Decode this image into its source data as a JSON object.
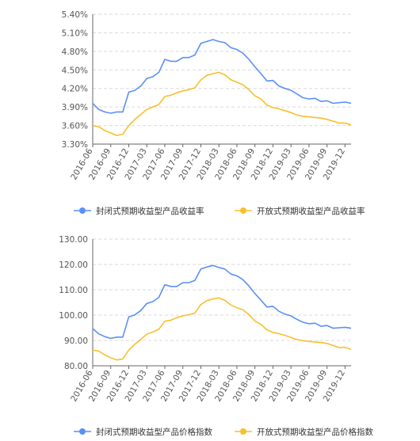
{
  "chart_data": [
    {
      "type": "line",
      "ylim": [
        3.3,
        5.4
      ],
      "yticks": [
        "5.40%",
        "5.10%",
        "4.80%",
        "4.50%",
        "4.20%",
        "3.90%",
        "3.60%",
        "3.30%"
      ],
      "x_tick_labels": [
        "2016-06",
        "2016-09",
        "2016-12",
        "2017-03",
        "2017-06",
        "2017-09",
        "2017-12",
        "2018-03",
        "2018-06",
        "2018-09",
        "2018-12",
        "2019-03",
        "2019-06",
        "2019-09",
        "2019-12"
      ],
      "legend": {
        "position": "bottom-center"
      },
      "grid": "horizontal dashed",
      "series": [
        {
          "name": "封闭式预期收益型产品收益率",
          "color": "#5b8ff9",
          "values": [
            3.96,
            3.86,
            3.82,
            3.8,
            3.82,
            3.82,
            4.14,
            4.17,
            4.24,
            4.36,
            4.39,
            4.46,
            4.67,
            4.64,
            4.64,
            4.7,
            4.7,
            4.74,
            4.93,
            4.96,
            4.99,
            4.96,
            4.94,
            4.86,
            4.83,
            4.77,
            4.67,
            4.55,
            4.44,
            4.32,
            4.33,
            4.24,
            4.2,
            4.17,
            4.11,
            4.05,
            4.03,
            4.04,
            3.99,
            4.0,
            3.96,
            3.97,
            3.98,
            3.96
          ]
        },
        {
          "name": "开放式预期收益型产品收益率",
          "color": "#f7c02b",
          "values": [
            3.6,
            3.58,
            3.52,
            3.48,
            3.44,
            3.46,
            3.6,
            3.7,
            3.78,
            3.86,
            3.9,
            3.94,
            4.07,
            4.09,
            4.13,
            4.16,
            4.18,
            4.21,
            4.34,
            4.41,
            4.44,
            4.46,
            4.42,
            4.34,
            4.3,
            4.26,
            4.18,
            4.08,
            4.03,
            3.93,
            3.89,
            3.87,
            3.84,
            3.81,
            3.77,
            3.75,
            3.74,
            3.73,
            3.72,
            3.7,
            3.67,
            3.64,
            3.64,
            3.61
          ]
        }
      ]
    },
    {
      "type": "line",
      "ylim": [
        80,
        130
      ],
      "yticks": [
        "130.00",
        "120.00",
        "110.00",
        "100.00",
        "90.00",
        "80.00"
      ],
      "x_tick_labels": [
        "2016-06",
        "2016-09",
        "2016-12",
        "2017-03",
        "2017-06",
        "2017-09",
        "2017-12",
        "2018-03",
        "2018-06",
        "2018-09",
        "2018-12",
        "2019-03",
        "2019-06",
        "2019-09",
        "2019-12"
      ],
      "legend": {
        "position": "bottom-center"
      },
      "grid": "horizontal dashed",
      "series": [
        {
          "name": "封闭式预期收益型产品价格指数",
          "color": "#5b8ff9",
          "values": [
            94.7,
            92.6,
            91.5,
            90.8,
            91.3,
            91.3,
            99.3,
            100.1,
            101.8,
            104.6,
            105.3,
            107.0,
            112.0,
            111.3,
            111.3,
            112.8,
            112.8,
            113.7,
            118.2,
            119.0,
            119.6,
            118.8,
            118.2,
            116.2,
            115.5,
            114.0,
            111.5,
            108.5,
            105.9,
            103.2,
            103.5,
            101.5,
            100.4,
            99.7,
            98.3,
            97.2,
            96.6,
            96.8,
            95.6,
            95.9,
            94.8,
            95.0,
            95.2,
            94.8
          ]
        },
        {
          "name": "开放式预期收益型产品价格指数",
          "color": "#f7c02b",
          "values": [
            86.2,
            85.8,
            84.3,
            83.2,
            82.3,
            82.7,
            86.2,
            88.5,
            90.4,
            92.5,
            93.3,
            94.4,
            97.6,
            98.0,
            99.0,
            99.7,
            100.2,
            100.8,
            104.2,
            105.7,
            106.4,
            106.8,
            105.8,
            104.0,
            102.9,
            102.1,
            100.2,
            97.7,
            96.3,
            94.2,
            93.2,
            92.7,
            92.0,
            91.2,
            90.3,
            89.9,
            89.6,
            89.4,
            89.2,
            88.8,
            88.0,
            87.2,
            87.3,
            86.5
          ]
        }
      ]
    }
  ]
}
